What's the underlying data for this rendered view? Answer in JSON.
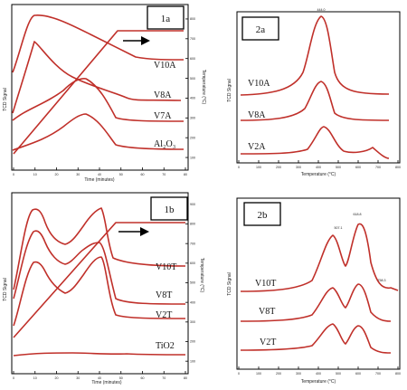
{
  "panels": {
    "p1a": {
      "id": "1a",
      "xlabel": "Time (minutes)",
      "ylabel": "TCD Signal",
      "y2label": "Temperature (°C)"
    },
    "p1b": {
      "id": "1b",
      "xlabel": "Time (minutes)",
      "ylabel": "TCD Signal",
      "y2label": "Temperature (°C)"
    },
    "p2a": {
      "id": "2a",
      "xlabel": "Temperature (°C)",
      "ylabel": "TCD Signal",
      "peak": "444.0"
    },
    "p2b": {
      "id": "2b",
      "xlabel": "Temperature (°C)",
      "ylabel": "TCD Signal",
      "peaks": [
        "507.1",
        "618.8",
        "758.3"
      ]
    }
  },
  "chart_data": [
    {
      "panel": "1a",
      "type": "line",
      "xlabel": "Time (minutes)",
      "ylabel": "TCD Signal",
      "y2label": "Temperature (°C)",
      "xticks": [
        0,
        10,
        20,
        30,
        40,
        50,
        60,
        70,
        80
      ],
      "xlim": [
        0,
        80
      ],
      "y2ticks": [
        100,
        200,
        300,
        400,
        500,
        600,
        700,
        800
      ],
      "series": [
        {
          "name": "V10A",
          "peak_time": 8
        },
        {
          "name": "V8A",
          "peak_time": 8
        },
        {
          "name": "V7A",
          "peak_time": 29
        },
        {
          "name": "Al₂O₃",
          "peak_time": 30
        }
      ],
      "temperature_ramp": {
        "start": [
          0,
          100
        ],
        "end": [
          43,
          800
        ],
        "hold_to": 80
      }
    },
    {
      "panel": "1b",
      "type": "line",
      "xlabel": "Time (minutes)",
      "ylabel": "TCD Signal",
      "y2label": "Temperature (°C)",
      "xticks": [
        0,
        10,
        20,
        30,
        40,
        50,
        60,
        70,
        80
      ],
      "xlim": [
        0,
        80
      ],
      "y2ticks": [
        100,
        200,
        300,
        400,
        500,
        600,
        700,
        800,
        900
      ],
      "series": [
        {
          "name": "V10T",
          "peak_times": [
            7,
            37
          ]
        },
        {
          "name": "V8T",
          "peak_times": [
            7,
            37
          ]
        },
        {
          "name": "V2T",
          "peak_times": [
            7,
            37
          ]
        },
        {
          "name": "TiO2",
          "peak_times": []
        }
      ],
      "temperature_ramp": {
        "start": [
          0,
          100
        ],
        "end": [
          50,
          800
        ],
        "hold_to": 80
      }
    },
    {
      "panel": "2a",
      "type": "line",
      "xlabel": "Temperature (°C)",
      "ylabel": "TCD Signal",
      "xticks": [
        0,
        100,
        200,
        300,
        400,
        500,
        600,
        700,
        800
      ],
      "xlim": [
        0,
        800
      ],
      "series": [
        {
          "name": "V10A",
          "peak_temp": 444.0
        },
        {
          "name": "V8A",
          "peak_temp": 444.0
        },
        {
          "name": "V2A",
          "peak_temp": 460
        }
      ],
      "annotations": [
        "444.0"
      ]
    },
    {
      "panel": "2b",
      "type": "line",
      "xlabel": "Temperature (°C)",
      "ylabel": "TCD Signal",
      "xticks": [
        0,
        100,
        200,
        300,
        400,
        500,
        600,
        700,
        800
      ],
      "xlim": [
        0,
        800
      ],
      "series": [
        {
          "name": "V10T",
          "peak_temps": [
            507.1,
            618.8,
            758.3
          ]
        },
        {
          "name": "V8T",
          "peak_temps": [
            507.1,
            618.8
          ]
        },
        {
          "name": "V2T",
          "peak_temps": [
            507.1,
            618.8
          ]
        }
      ],
      "annotations": [
        "507.1",
        "618.8",
        "758.3"
      ]
    }
  ]
}
